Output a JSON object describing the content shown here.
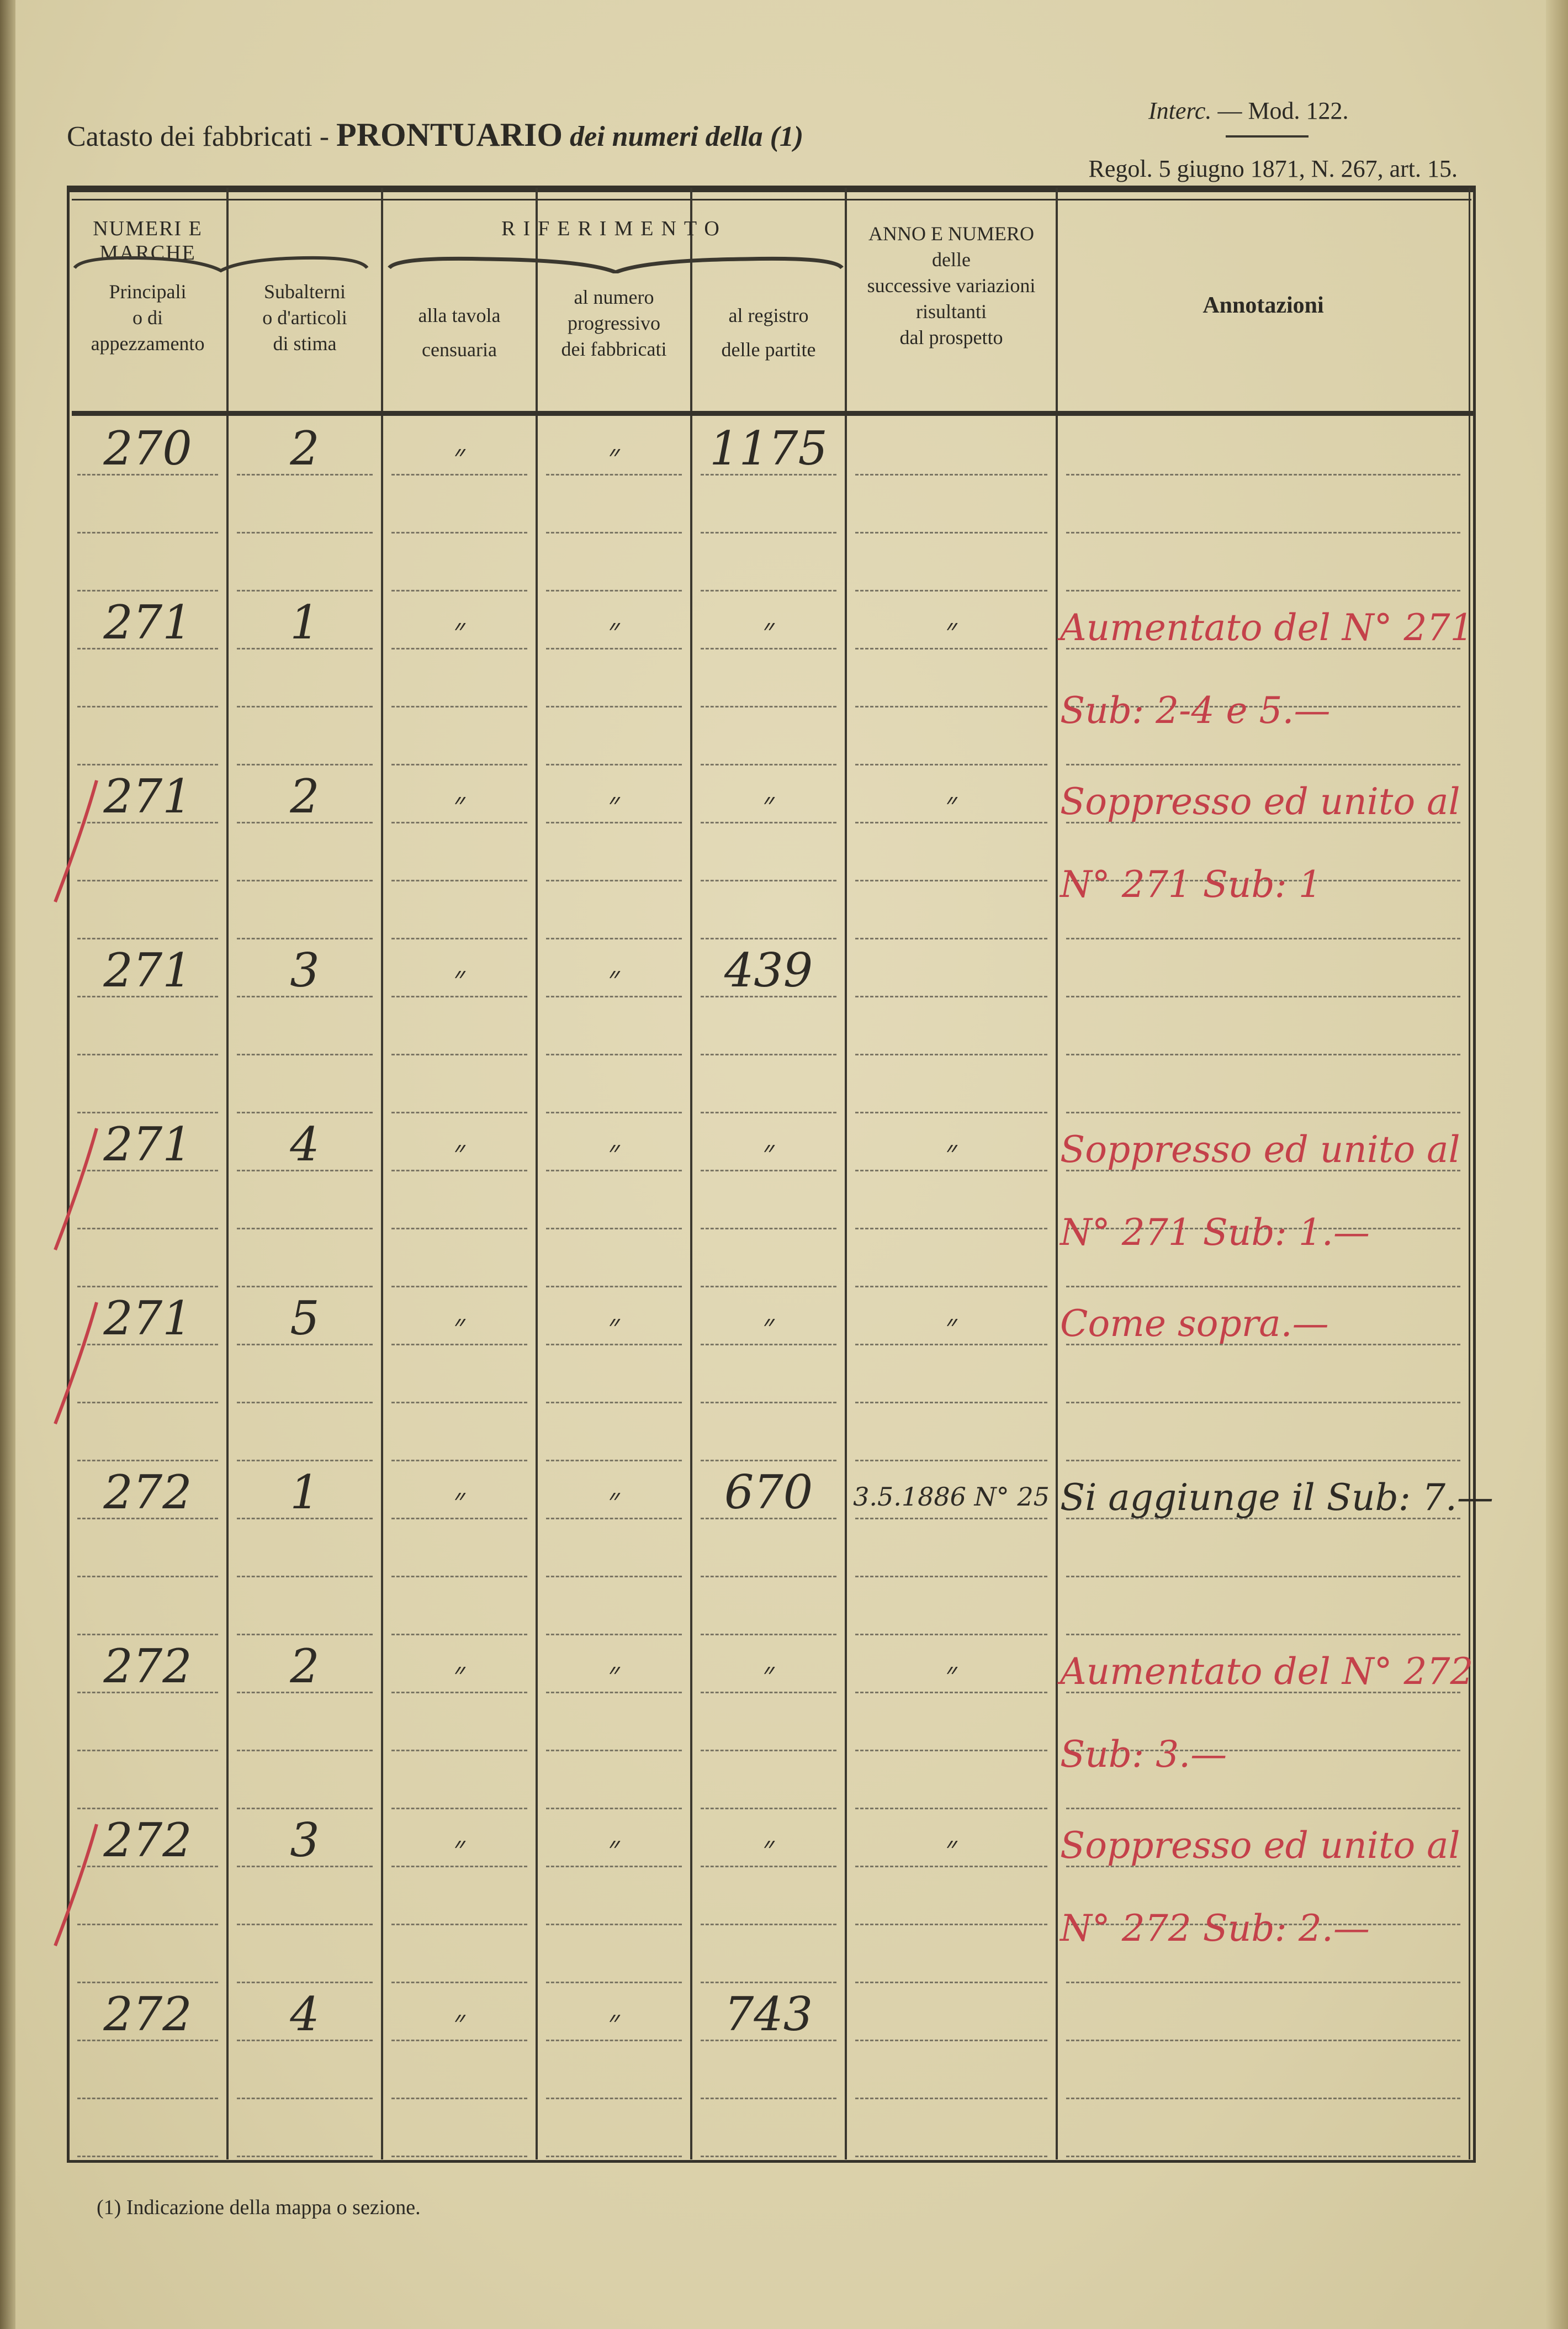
{
  "header": {
    "title_prefix": "Catasto dei fabbricati -",
    "title_main": "PRONTUARIO",
    "title_suffix": "dei numeri della (1)",
    "interc": "Interc.",
    "mod": "— Mod. 122.",
    "regol": "Regol. 5 giugno 1871, N. 267, art. 15."
  },
  "columns": {
    "group_numeri": "NUMERI E MARCHE",
    "group_riferimento": "RIFERIMENTO",
    "principali": [
      "Principali",
      "o di",
      "appezzamento"
    ],
    "subalterni": [
      "Subalterni",
      "o d'articoli",
      "di stima"
    ],
    "tavola": [
      "alla tavola",
      "censuaria"
    ],
    "numero": [
      "al numero",
      "progressivo",
      "dei fabbricati"
    ],
    "registro": [
      "al registro",
      "delle partite"
    ],
    "anno": [
      "ANNO E NUMERO",
      "delle",
      "successive variazioni",
      "risultanti",
      "dal prospetto"
    ],
    "annotazioni": "Annotazioni"
  },
  "ink_colors": {
    "black": "#2e2b25",
    "red": "#c4414a"
  },
  "rows": [
    {
      "principale": "270",
      "sub": "2",
      "tavola": "״",
      "numero": "״",
      "registro": "1175",
      "anno": "",
      "annotazioni": [],
      "annot_color": "black",
      "cancelled": false
    },
    {
      "principale": "271",
      "sub": "1",
      "tavola": "״",
      "numero": "״",
      "registro": "״",
      "anno": "״",
      "annotazioni": [
        "Aumentato del N° 271",
        "Sub: 2-4 e 5.—"
      ],
      "annot_color": "red",
      "cancelled": false
    },
    {
      "principale": "271",
      "sub": "2",
      "tavola": "״",
      "numero": "״",
      "registro": "״",
      "anno": "״",
      "annotazioni": [
        "Soppresso ed unito al",
        "N° 271 Sub: 1"
      ],
      "annot_color": "red",
      "cancelled": true
    },
    {
      "principale": "271",
      "sub": "3",
      "tavola": "״",
      "numero": "״",
      "registro": "439",
      "anno": "",
      "annotazioni": [],
      "annot_color": "black",
      "cancelled": false
    },
    {
      "principale": "271",
      "sub": "4",
      "tavola": "״",
      "numero": "״",
      "registro": "״",
      "anno": "״",
      "annotazioni": [
        "Soppresso ed unito al",
        "N° 271 Sub: 1.—"
      ],
      "annot_color": "red",
      "cancelled": true
    },
    {
      "principale": "271",
      "sub": "5",
      "tavola": "״",
      "numero": "״",
      "registro": "״",
      "anno": "״",
      "annotazioni": [
        "  Come sopra.—"
      ],
      "annot_color": "red",
      "cancelled": true
    },
    {
      "principale": "272",
      "sub": "1",
      "tavola": "״",
      "numero": "״",
      "registro": "670",
      "anno": "3.5.1886 N° 25",
      "annotazioni": [
        "Si aggiunge il Sub: 7.—"
      ],
      "annot_color": "black",
      "cancelled": false
    },
    {
      "principale": "272",
      "sub": "2",
      "tavola": "״",
      "numero": "״",
      "registro": "״",
      "anno": "״",
      "annotazioni": [
        "Aumentato del N° 272",
        "Sub: 3.—"
      ],
      "annot_color": "red",
      "cancelled": false
    },
    {
      "principale": "272",
      "sub": "3",
      "tavola": "״",
      "numero": "״",
      "registro": "״",
      "anno": "״",
      "annotazioni": [
        "Soppresso ed unito al",
        "N° 272 Sub: 2.—"
      ],
      "annot_color": "red",
      "cancelled": true
    },
    {
      "principale": "272",
      "sub": "4",
      "tavola": "״",
      "numero": "״",
      "registro": "743",
      "anno": "",
      "annotazioni": [],
      "annot_color": "black",
      "cancelled": false
    }
  ],
  "footnote": "(1) Indicazione della mappa o sezione."
}
